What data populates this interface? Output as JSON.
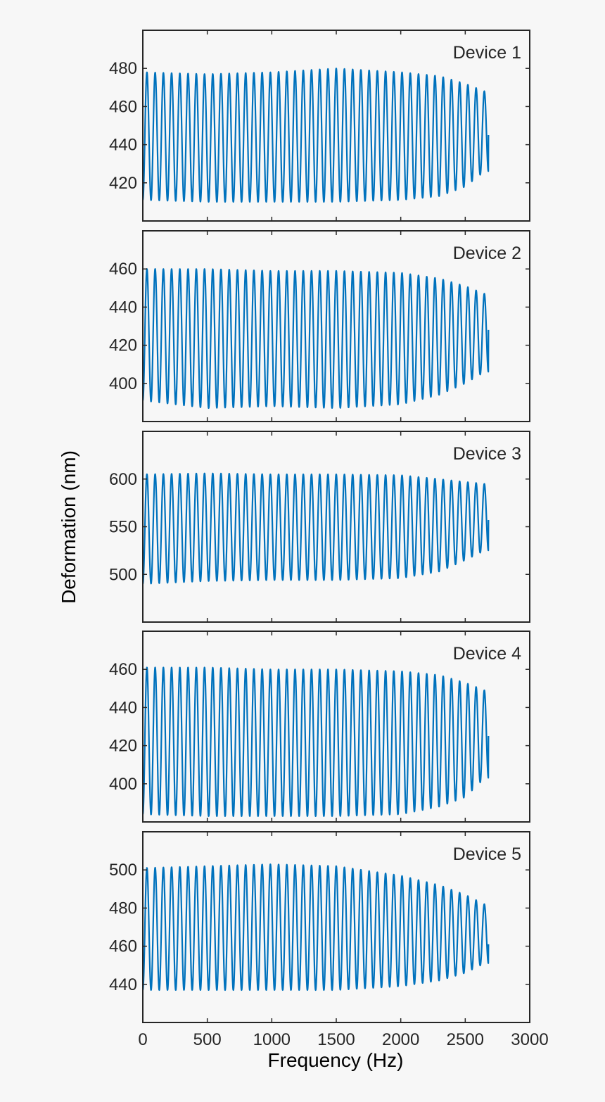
{
  "chart_data": {
    "type": "line",
    "xlabel": "Frequency (Hz)",
    "ylabel": "Deformation (nm)",
    "xlim": [
      0,
      3000
    ],
    "xticks": [
      0,
      500,
      1000,
      1500,
      2000,
      2500,
      3000
    ],
    "line_color": "#0072bd",
    "grid": false,
    "oscillation": {
      "cycles": 42,
      "x_start": 0,
      "x_end": 2680
    },
    "panels": [
      {
        "label": "Device 1",
        "ylim": [
          400,
          500
        ],
        "yticks": [
          420,
          440,
          460,
          480
        ],
        "envelope": [
          {
            "x": 0,
            "max": 478,
            "min": 411
          },
          {
            "x": 500,
            "max": 477,
            "min": 410
          },
          {
            "x": 1000,
            "max": 478,
            "min": 410
          },
          {
            "x": 1500,
            "max": 480,
            "min": 410
          },
          {
            "x": 2000,
            "max": 478,
            "min": 411
          },
          {
            "x": 2300,
            "max": 476,
            "min": 413
          },
          {
            "x": 2500,
            "max": 472,
            "min": 418
          },
          {
            "x": 2650,
            "max": 468,
            "min": 426
          }
        ],
        "end_value": 445
      },
      {
        "label": "Device 2",
        "ylim": [
          380,
          480
        ],
        "yticks": [
          400,
          420,
          440,
          460
        ],
        "envelope": [
          {
            "x": 0,
            "max": 460,
            "min": 391
          },
          {
            "x": 500,
            "max": 460,
            "min": 387
          },
          {
            "x": 1000,
            "max": 459,
            "min": 388
          },
          {
            "x": 1500,
            "max": 459,
            "min": 387
          },
          {
            "x": 2000,
            "max": 458,
            "min": 389
          },
          {
            "x": 2300,
            "max": 455,
            "min": 394
          },
          {
            "x": 2500,
            "max": 451,
            "min": 400
          },
          {
            "x": 2650,
            "max": 447,
            "min": 406
          }
        ],
        "end_value": 428
      },
      {
        "label": "Device 3",
        "ylim": [
          450,
          650
        ],
        "yticks": [
          500,
          550,
          600
        ],
        "envelope": [
          {
            "x": 0,
            "max": 605,
            "min": 490
          },
          {
            "x": 500,
            "max": 606,
            "min": 493
          },
          {
            "x": 1000,
            "max": 605,
            "min": 494
          },
          {
            "x": 1500,
            "max": 605,
            "min": 494
          },
          {
            "x": 2000,
            "max": 604,
            "min": 496
          },
          {
            "x": 2300,
            "max": 600,
            "min": 503
          },
          {
            "x": 2500,
            "max": 597,
            "min": 515
          },
          {
            "x": 2650,
            "max": 595,
            "min": 525
          }
        ],
        "end_value": 557
      },
      {
        "label": "Device 4",
        "ylim": [
          380,
          480
        ],
        "yticks": [
          400,
          420,
          440,
          460
        ],
        "envelope": [
          {
            "x": 0,
            "max": 461,
            "min": 384
          },
          {
            "x": 500,
            "max": 461,
            "min": 383
          },
          {
            "x": 1000,
            "max": 460,
            "min": 383
          },
          {
            "x": 1500,
            "max": 460,
            "min": 383
          },
          {
            "x": 2000,
            "max": 459,
            "min": 384
          },
          {
            "x": 2300,
            "max": 457,
            "min": 388
          },
          {
            "x": 2500,
            "max": 453,
            "min": 393
          },
          {
            "x": 2650,
            "max": 449,
            "min": 403
          }
        ],
        "end_value": 425
      },
      {
        "label": "Device 5",
        "ylim": [
          420,
          520
        ],
        "yticks": [
          440,
          460,
          480,
          500
        ],
        "envelope": [
          {
            "x": 0,
            "max": 501,
            "min": 437
          },
          {
            "x": 500,
            "max": 502,
            "min": 437
          },
          {
            "x": 1000,
            "max": 503,
            "min": 437
          },
          {
            "x": 1500,
            "max": 502,
            "min": 437
          },
          {
            "x": 2000,
            "max": 497,
            "min": 439
          },
          {
            "x": 2300,
            "max": 492,
            "min": 442
          },
          {
            "x": 2500,
            "max": 487,
            "min": 446
          },
          {
            "x": 2650,
            "max": 482,
            "min": 451
          }
        ],
        "end_value": 461
      }
    ]
  }
}
